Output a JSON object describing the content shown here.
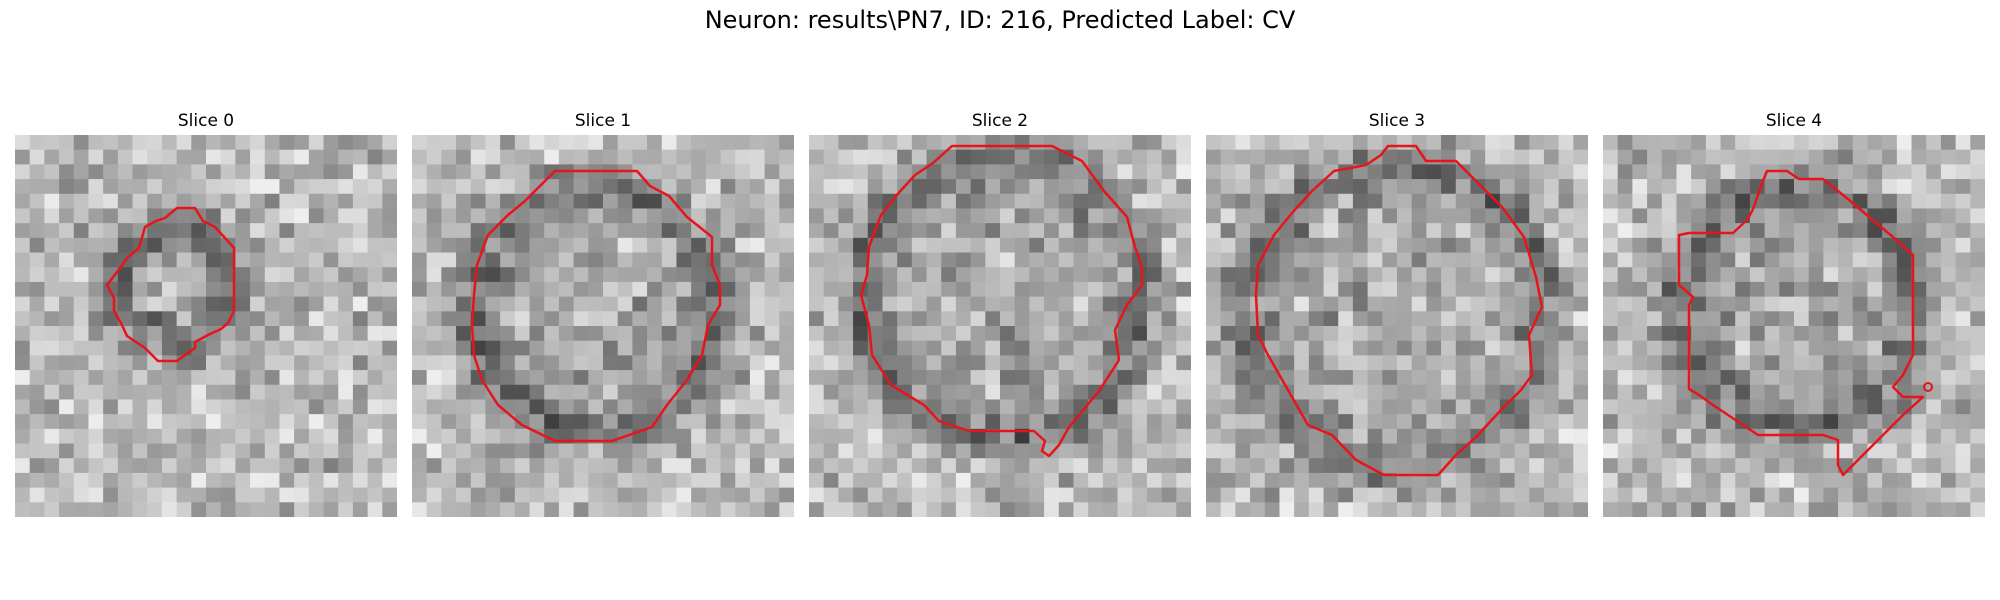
{
  "figure": {
    "title": "Neuron: results\\PN7, ID: 216, Predicted Label: CV",
    "outline_color": "#e8141b"
  },
  "panels": [
    {
      "title": "Slice 0"
    },
    {
      "title": "Slice 1"
    },
    {
      "title": "Slice 2"
    },
    {
      "title": "Slice 3"
    },
    {
      "title": "Slice 4"
    }
  ]
}
